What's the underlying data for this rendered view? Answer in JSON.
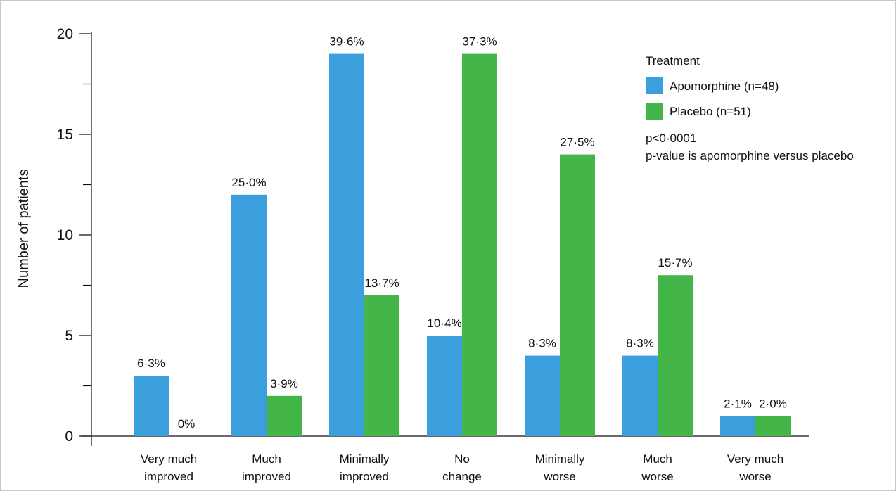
{
  "chart_data": {
    "type": "bar",
    "y_label": "Number of patients",
    "categories": [
      [
        "Very much",
        "improved"
      ],
      [
        "Much",
        "improved"
      ],
      [
        "Minimally",
        "improved"
      ],
      [
        "No",
        "change"
      ],
      [
        "Minimally",
        "worse"
      ],
      [
        "Much",
        "worse"
      ],
      [
        "Very much",
        "worse"
      ]
    ],
    "series": [
      {
        "name": "Apomorphine (n=48)",
        "color": "#3a9fdc",
        "values": [
          3,
          12,
          19,
          5,
          4,
          4,
          1
        ],
        "percent_labels": [
          "6·3%",
          "25·0%",
          "39·6%",
          "10·4%",
          "8·3%",
          "8·3%",
          "2·1%"
        ]
      },
      {
        "name": "Placebo (n=51)",
        "color": "#44b549",
        "values": [
          0,
          2,
          7,
          19,
          14,
          8,
          1
        ],
        "percent_labels": [
          "0%",
          "3·9%",
          "13·7%",
          "37·3%",
          "27·5%",
          "15·7%",
          "2·0%"
        ]
      }
    ],
    "ylim": [
      0,
      20
    ],
    "yticks": [
      0,
      5,
      10,
      15,
      20
    ],
    "yminor_ticks": [
      2.5,
      7.5,
      12.5,
      17.5
    ],
    "legend_title": "Treatment",
    "notes": [
      "p<0·0001",
      "p-value is apomorphine versus placebo"
    ]
  }
}
